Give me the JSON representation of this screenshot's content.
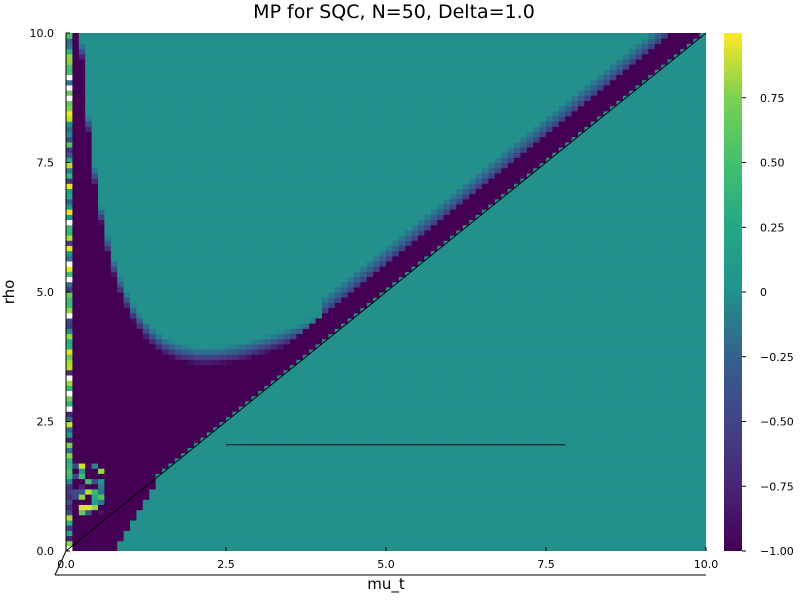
{
  "chart_data": {
    "type": "heatmap",
    "title": "MP for SQC, N=50, Delta=1.0",
    "xlabel": "mu_t",
    "ylabel": "rho",
    "xlim": [
      0.0,
      10.0
    ],
    "ylim": [
      0.0,
      10.0
    ],
    "x_ticks": [
      0.0,
      2.5,
      5.0,
      7.5,
      10.0
    ],
    "x_tick_labels": [
      "0.0",
      "2.5",
      "5.0",
      "7.5",
      "10.0"
    ],
    "y_ticks": [
      0.0,
      2.5,
      5.0,
      7.5,
      10.0
    ],
    "y_tick_labels": [
      "0.0",
      "2.5",
      "5.0",
      "7.5",
      "10.0"
    ],
    "grid": "x: 100 cells, y: 100 cells",
    "colormap": "viridis",
    "clim": [
      -1.0,
      1.0
    ],
    "colorbar_ticks": [
      0.75,
      0.5,
      0.25,
      0,
      -0.25,
      -0.5,
      -0.75,
      -1.0
    ],
    "colorbar_tick_labels": [
      "0.75",
      "0.50",
      "0.25",
      "0",
      "−0.25",
      "−0.50",
      "−0.75",
      "−1.00"
    ],
    "regions": {
      "background_value": 0.0,
      "low_region_value": -1.0,
      "low_region_description": "rho > mu_t band and upper-left region bounded by curve with minimum near (2.2, 3.6)",
      "noisy_column_mu_t_max": 0.15,
      "noisy_cluster_near": [
        0.5,
        1.3
      ]
    },
    "overlay_lines": [
      {
        "x": [
          0.0,
          10.0
        ],
        "y": [
          0.0,
          10.0
        ],
        "color": "#000000"
      },
      {
        "x": [
          2.5,
          7.8
        ],
        "y": [
          2.05,
          2.05
        ],
        "color": "#000000"
      }
    ]
  }
}
